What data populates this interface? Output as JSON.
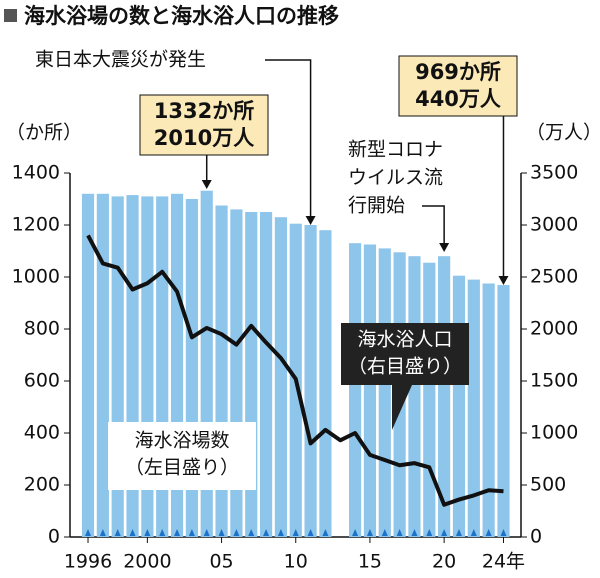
{
  "chart_data": {
    "type": "bar_line",
    "title": "海水浴場の数と海水浴人口の推移",
    "y_label": "（か所）",
    "y2_label": "（万人）",
    "x": [
      1996,
      1997,
      1998,
      1999,
      2000,
      2001,
      2002,
      2003,
      2004,
      2005,
      2006,
      2007,
      2008,
      2009,
      2010,
      2011,
      2012,
      2013,
      2014,
      2015,
      2016,
      2017,
      2018,
      2019,
      2020,
      2021,
      2022,
      2023,
      2024
    ],
    "xlim": [
      1995.5,
      2024.5
    ],
    "xticks": [
      1996,
      2000,
      {
        "value": 2005,
        "label": "05"
      },
      {
        "value": 2010,
        "label": "10"
      },
      {
        "value": 2015,
        "label": "15"
      },
      {
        "value": 2020,
        "label": "20"
      },
      {
        "value": 2024,
        "label": "24年"
      }
    ],
    "ylim": [
      0,
      1400
    ],
    "yticks": [
      0,
      200,
      400,
      600,
      800,
      1000,
      1200,
      1400
    ],
    "y2lim": [
      0,
      3500
    ],
    "y2ticks": [
      0,
      500,
      1000,
      1500,
      2000,
      2500,
      3000,
      3500
    ],
    "series": [
      {
        "name": "海水浴場数",
        "name_note": "（左目盛り）",
        "type": "bar",
        "color": "#8ec5ea",
        "values": [
          1320,
          1320,
          1310,
          1315,
          1310,
          1310,
          1320,
          1300,
          1332,
          1275,
          1260,
          1250,
          1250,
          1230,
          1205,
          1200,
          1180,
          null,
          1130,
          1125,
          1110,
          1095,
          1080,
          1055,
          1080,
          1005,
          990,
          975,
          969
        ]
      },
      {
        "name": "海水浴人口",
        "name_note": "（右目盛り）",
        "type": "line",
        "color": "#111111",
        "axis": "y2",
        "values": [
          2900,
          2630,
          2590,
          2380,
          2440,
          2550,
          2360,
          1920,
          2010,
          1950,
          1850,
          2030,
          1870,
          1720,
          1520,
          900,
          1030,
          930,
          1000,
          790,
          740,
          690,
          710,
          670,
          310,
          360,
          400,
          450,
          440
        ]
      }
    ],
    "annotations": [
      {
        "lines": [
          "1332か所",
          "2010万人"
        ],
        "x": 2004
      },
      {
        "lines": [
          "969か所",
          "440万人"
        ],
        "x": 2024
      },
      {
        "lines": [
          "東日本大震災が発生"
        ],
        "x": 2011
      },
      {
        "lines": [
          "新型コロナ",
          "ウイルス流",
          "行開始"
        ],
        "x": 2020
      }
    ]
  }
}
